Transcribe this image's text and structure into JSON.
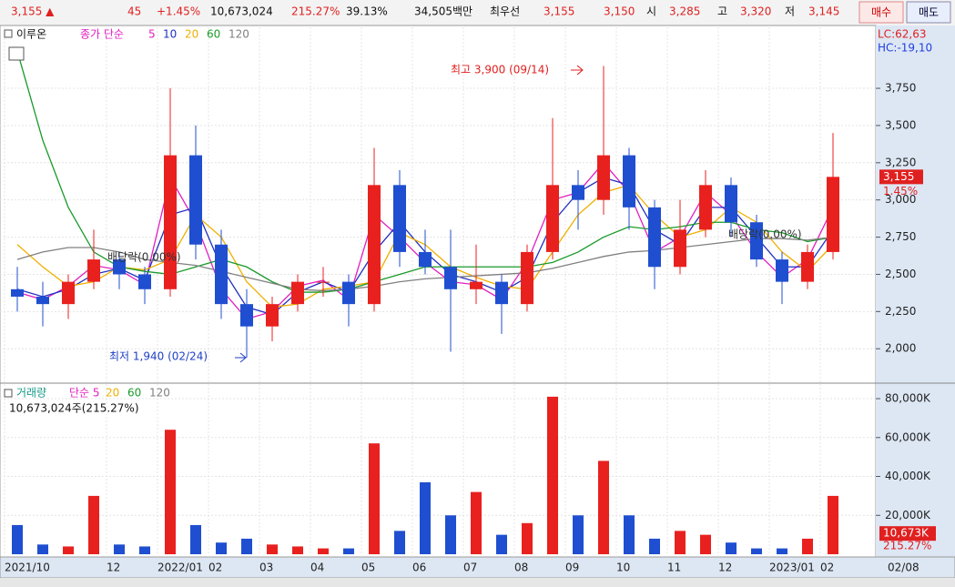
{
  "topbar": {
    "price": "3,155 ▲",
    "change": "45",
    "change_pct": "+1.45%",
    "volume": "10,673,024",
    "volume_ratio": "215.27%",
    "turnover": "39.13%",
    "amount": "34,505백만",
    "best_label": "최우선",
    "best_ask": "3,155",
    "best_bid": "3,150",
    "open_label": "시",
    "open": "3,285",
    "high_label": "고",
    "high": "3,320",
    "low_label": "저",
    "low": "3,145",
    "buy": "매수",
    "sell": "매도"
  },
  "chart_data": [
    {
      "type": "candlestick",
      "title": "이루온",
      "legend_prefix": "종가 단순",
      "categories": [
        "2021/10",
        null,
        null,
        null,
        "12",
        null,
        "2022/01",
        null,
        "02",
        null,
        "03",
        null,
        "04",
        null,
        "05",
        null,
        "06",
        null,
        "07",
        null,
        "08",
        null,
        "09",
        null,
        "10",
        null,
        "11",
        null,
        "12",
        null,
        "2023/01",
        null,
        "02"
      ],
      "open": [
        2400,
        2350,
        2300,
        2450,
        2600,
        2500,
        2400,
        3300,
        2700,
        2300,
        2150,
        2300,
        2450,
        2450,
        2300,
        3100,
        2650,
        2550,
        2400,
        2450,
        2300,
        2650,
        3100,
        3000,
        3300,
        2950,
        2550,
        2800,
        3100,
        2850,
        2600,
        2450,
        2650
      ],
      "high": [
        2550,
        2450,
        2500,
        2800,
        2650,
        2550,
        3750,
        3500,
        2800,
        2400,
        2350,
        2500,
        2550,
        2500,
        3350,
        3200,
        2800,
        2800,
        2700,
        2500,
        2700,
        3550,
        3200,
        3900,
        3350,
        3000,
        3000,
        3200,
        3150,
        2900,
        2650,
        2700,
        3450
      ],
      "low": [
        2250,
        2150,
        2200,
        2400,
        2400,
        2300,
        2350,
        2600,
        2200,
        1940,
        2050,
        2250,
        2350,
        2150,
        2250,
        2550,
        2500,
        1980,
        2300,
        2100,
        2250,
        2600,
        2800,
        2900,
        2800,
        2400,
        2500,
        2750,
        2750,
        2550,
        2300,
        2400,
        2600
      ],
      "close": [
        2350,
        2300,
        2450,
        2600,
        2500,
        2400,
        3300,
        2700,
        2300,
        2150,
        2300,
        2450,
        2450,
        2300,
        3100,
        2650,
        2550,
        2400,
        2450,
        2300,
        2650,
        3100,
        3000,
        3300,
        2950,
        2550,
        2800,
        3100,
        2850,
        2600,
        2450,
        2650,
        3155
      ],
      "up_color": "#e8211f",
      "down_color": "#1f4fd0",
      "series": [
        {
          "name": "5",
          "color": "#e020c0",
          "values": [
            2380,
            2330,
            2420,
            2560,
            2530,
            2430,
            3150,
            2850,
            2400,
            2200,
            2250,
            2420,
            2460,
            2330,
            2900,
            2750,
            2580,
            2450,
            2430,
            2330,
            2580,
            3000,
            3050,
            3250,
            3050,
            2650,
            2750,
            3050,
            2900,
            2650,
            2480,
            2600,
            2950
          ]
        },
        {
          "name": "10",
          "color": "#2030c0",
          "values": [
            2400,
            2350,
            2400,
            2500,
            2540,
            2460,
            2900,
            2950,
            2550,
            2280,
            2230,
            2380,
            2450,
            2380,
            2650,
            2850,
            2650,
            2500,
            2450,
            2380,
            2480,
            2850,
            3050,
            3150,
            3100,
            2800,
            2700,
            2950,
            2950,
            2750,
            2550,
            2550,
            2800
          ]
        },
        {
          "name": "20",
          "color": "#f0b000",
          "values": [
            2700,
            2550,
            2420,
            2450,
            2550,
            2530,
            2600,
            2900,
            2750,
            2450,
            2280,
            2300,
            2400,
            2420,
            2450,
            2780,
            2700,
            2550,
            2480,
            2420,
            2400,
            2650,
            2900,
            3050,
            3100,
            2900,
            2750,
            2800,
            2950,
            2850,
            2650,
            2520,
            2700
          ]
        },
        {
          "name": "60",
          "color": "#1a9a2a",
          "values": [
            4000,
            3400,
            2950,
            2650,
            2550,
            2520,
            2500,
            2550,
            2600,
            2550,
            2450,
            2380,
            2380,
            2400,
            2450,
            2500,
            2550,
            2550,
            2550,
            2550,
            2550,
            2580,
            2650,
            2750,
            2820,
            2800,
            2820,
            2850,
            2850,
            2800,
            2780,
            2720,
            2750
          ]
        },
        {
          "name": "120",
          "color": "#808080",
          "values": [
            2600,
            2650,
            2680,
            2680,
            2650,
            2600,
            2580,
            2560,
            2520,
            2480,
            2440,
            2400,
            2390,
            2400,
            2420,
            2450,
            2470,
            2480,
            2490,
            2500,
            2510,
            2540,
            2580,
            2620,
            2650,
            2660,
            2680,
            2700,
            2720,
            2740,
            2740,
            2730,
            2750
          ]
        }
      ],
      "ylim": [
        1775,
        4160
      ],
      "yticks": [
        {
          "value": 2000,
          "label": "2,000"
        },
        {
          "value": 2250,
          "label": "2,250"
        },
        {
          "value": 2500,
          "label": "2,500"
        },
        {
          "value": 2750,
          "label": "2,750"
        },
        {
          "value": 3000,
          "label": "3,000"
        },
        {
          "value": 3250,
          "label": "3,250"
        },
        {
          "value": 3500,
          "label": "3,500"
        },
        {
          "value": 3750,
          "label": "3,750"
        }
      ],
      "last_value": {
        "value": 3155,
        "label": "3,155",
        "change": "1.45%"
      },
      "indicators": [
        "LC:62,63",
        "HC:-19,10"
      ],
      "annotations": [
        "최고 3,900 (09/14)",
        "최저 1,940 (02/24)",
        "배당락(0.00%)",
        "배당락(0.00%)"
      ],
      "date_label": "02/08"
    },
    {
      "type": "bar",
      "title": "거래량",
      "legend": [
        "단순 5",
        "20",
        "60",
        "120"
      ],
      "subtitle": "10,673,024주(215.27%)",
      "values": [
        15000,
        5000,
        4000,
        30000,
        5000,
        4000,
        64000,
        15000,
        6000,
        8000,
        5000,
        4000,
        3000,
        3000,
        57000,
        12000,
        37000,
        20000,
        32000,
        10000,
        16000,
        81000,
        20000,
        48000,
        20000,
        8000,
        12000,
        10000,
        6000,
        3000,
        3000,
        8000,
        30000
      ],
      "ylim": [
        0,
        87500
      ],
      "yticks": [
        {
          "value": 20000,
          "label": "20,000K"
        },
        {
          "value": 40000,
          "label": "40,000K"
        },
        {
          "value": 60000,
          "label": "60,000K"
        },
        {
          "value": 80000,
          "label": "80,000K"
        }
      ],
      "last_value": {
        "value": 10673,
        "label": "10,673K",
        "change": "215.27%"
      }
    }
  ]
}
